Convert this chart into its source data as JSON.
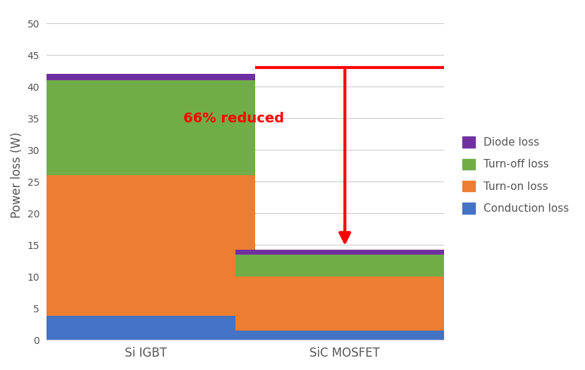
{
  "categories": [
    "Si IGBT",
    "SiC MOSFET"
  ],
  "conduction_loss": [
    3.8,
    1.5
  ],
  "turnon_loss": [
    22.2,
    8.5
  ],
  "turnoff_loss": [
    15.0,
    3.5
  ],
  "diode_loss": [
    1.0,
    0.8
  ],
  "colors": {
    "conduction": "#4472C4",
    "turnon": "#ED7D31",
    "turnoff": "#70AD47",
    "diode": "#7030A0"
  },
  "ylabel": "Power loss (W)",
  "ylim": [
    0,
    52
  ],
  "yticks": [
    0,
    5,
    10,
    15,
    20,
    25,
    30,
    35,
    40,
    45,
    50
  ],
  "annotation_text": "66% reduced",
  "annotation_color": "#FF0000",
  "reference_line_y": 43,
  "background_color": "#FFFFFF",
  "legend_labels": [
    "Diode loss",
    "Turn-off loss",
    "Turn-on loss",
    "Conduction loss"
  ],
  "bar_width": 0.55,
  "bar_positions": [
    0.25,
    0.75
  ]
}
